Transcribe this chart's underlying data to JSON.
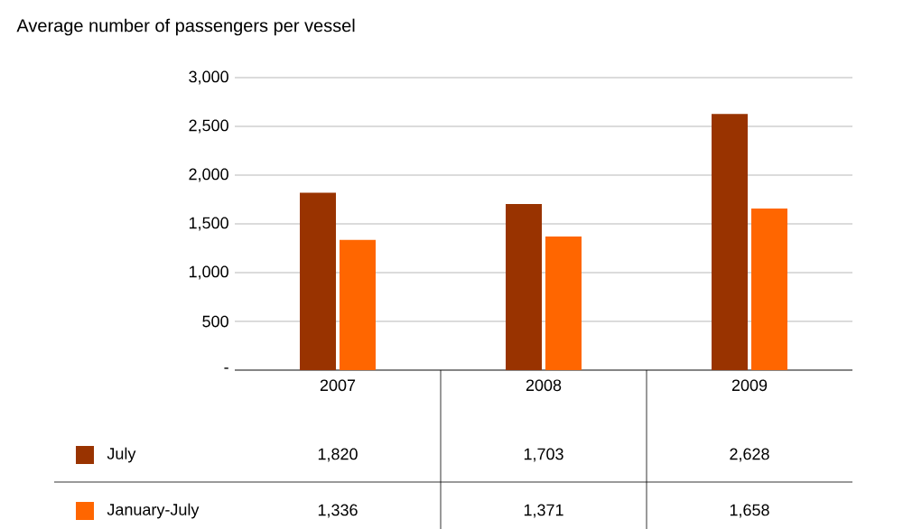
{
  "chart_data": {
    "type": "bar",
    "title": "Average number of passengers per vessel",
    "categories": [
      "2007",
      "2008",
      "2009"
    ],
    "series": [
      {
        "name": "July",
        "color": "#993300",
        "values": [
          1820,
          1703,
          2628
        ],
        "value_labels": [
          "1,820",
          "1,703",
          "2,628"
        ]
      },
      {
        "name": "January-July",
        "color": "#ff6600",
        "values": [
          1336,
          1371,
          1658
        ],
        "value_labels": [
          "1,336",
          "1,371",
          "1,658"
        ]
      }
    ],
    "ylim": [
      0,
      3000
    ],
    "yticks": [
      {
        "value": 0,
        "label": "-"
      },
      {
        "value": 500,
        "label": "500"
      },
      {
        "value": 1000,
        "label": "1,000"
      },
      {
        "value": 1500,
        "label": "1,500"
      },
      {
        "value": 2000,
        "label": "2,000"
      },
      {
        "value": 2500,
        "label": "2,500"
      },
      {
        "value": 3000,
        "label": "3,000"
      }
    ],
    "grid": "y",
    "legend": "bottom left"
  }
}
